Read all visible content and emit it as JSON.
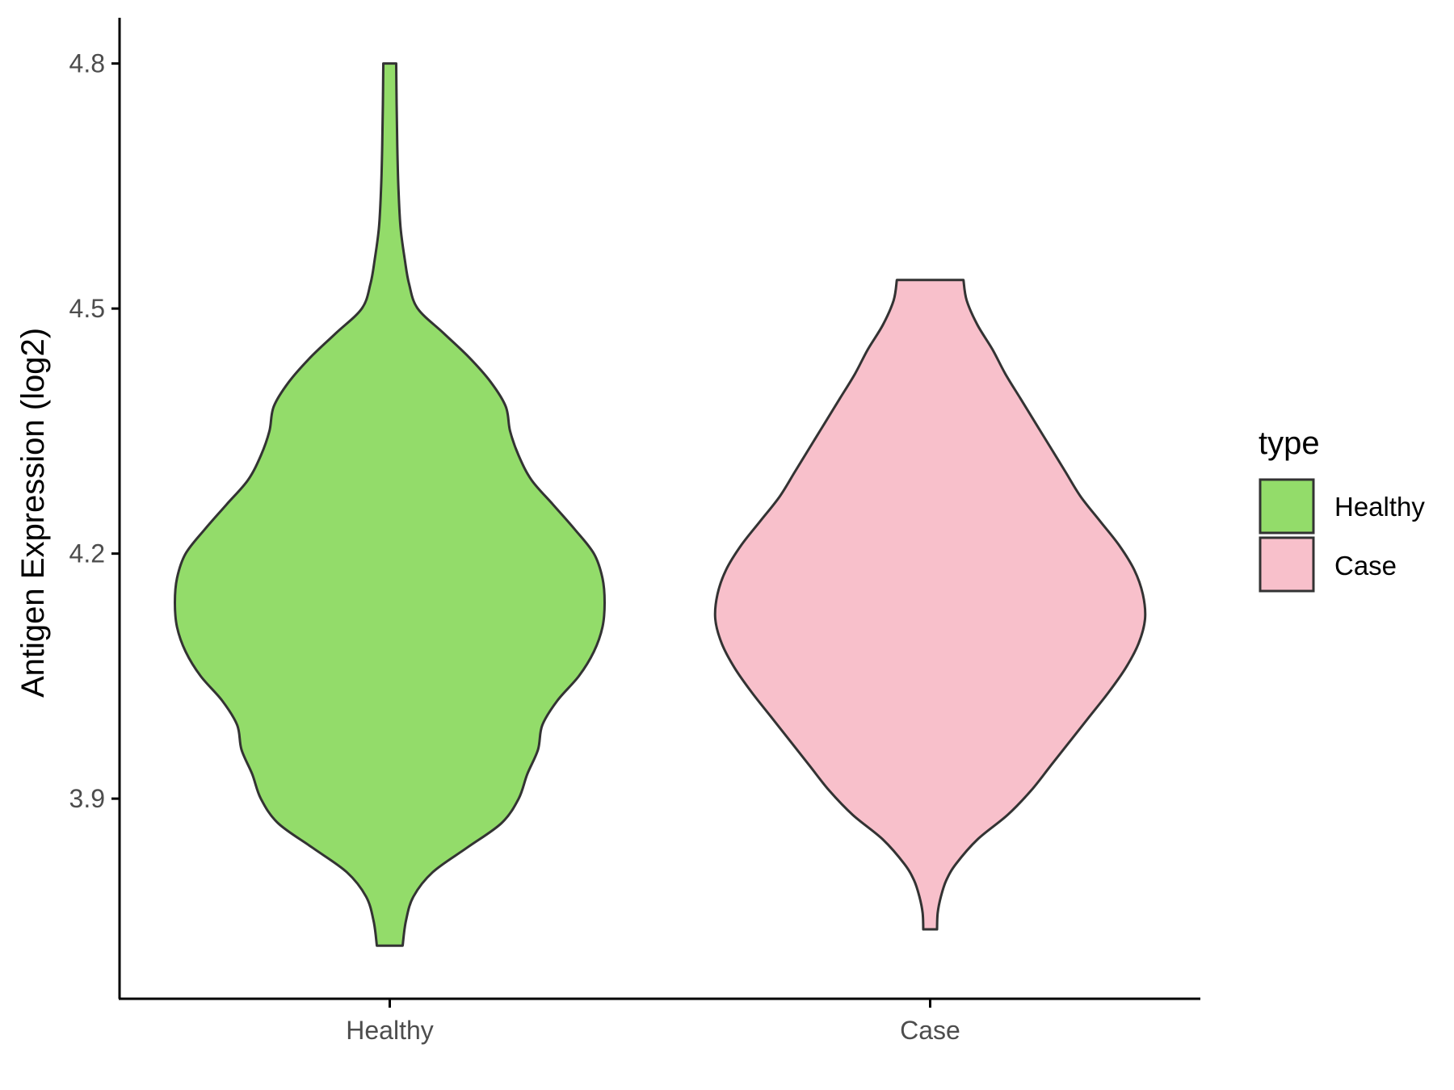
{
  "chart_data": {
    "type": "violin",
    "title": "",
    "xlabel": "",
    "ylabel": "Antigen Expression (log2)",
    "categories": [
      "Healthy",
      "Case"
    ],
    "y_ticks": [
      3.9,
      4.2,
      4.5,
      4.8
    ],
    "y_tick_labels": [
      "3.9",
      "4.2",
      "4.5",
      "4.8"
    ],
    "ylim": [
      3.655,
      4.856
    ],
    "grid": false,
    "legend": {
      "title": "type",
      "position": "right",
      "entries": [
        {
          "label": "Healthy",
          "color": "#93dc6a"
        },
        {
          "label": "Case",
          "color": "#f8c0cb"
        }
      ]
    },
    "outline_color": "#333333",
    "series": [
      {
        "name": "Healthy",
        "color": "#93dc6a",
        "min": 3.72,
        "max": 4.8,
        "profile": [
          [
            3.72,
            0.06
          ],
          [
            3.75,
            0.075
          ],
          [
            3.78,
            0.11
          ],
          [
            3.81,
            0.2
          ],
          [
            3.84,
            0.36
          ],
          [
            3.87,
            0.52
          ],
          [
            3.9,
            0.6
          ],
          [
            3.93,
            0.64
          ],
          [
            3.96,
            0.69
          ],
          [
            3.99,
            0.71
          ],
          [
            4.02,
            0.78
          ],
          [
            4.05,
            0.88
          ],
          [
            4.08,
            0.95
          ],
          [
            4.11,
            0.99
          ],
          [
            4.14,
            1.0
          ],
          [
            4.17,
            0.99
          ],
          [
            4.2,
            0.95
          ],
          [
            4.23,
            0.86
          ],
          [
            4.26,
            0.76
          ],
          [
            4.29,
            0.66
          ],
          [
            4.32,
            0.6
          ],
          [
            4.35,
            0.56
          ],
          [
            4.38,
            0.54
          ],
          [
            4.41,
            0.47
          ],
          [
            4.44,
            0.37
          ],
          [
            4.47,
            0.25
          ],
          [
            4.5,
            0.13
          ],
          [
            4.53,
            0.09
          ],
          [
            4.56,
            0.07
          ],
          [
            4.6,
            0.05
          ],
          [
            4.65,
            0.04
          ],
          [
            4.7,
            0.035
          ],
          [
            4.75,
            0.032
          ],
          [
            4.8,
            0.03
          ]
        ]
      },
      {
        "name": "Case",
        "color": "#f8c0cb",
        "min": 3.74,
        "max": 4.535,
        "profile": [
          [
            3.74,
            0.032
          ],
          [
            3.76,
            0.035
          ],
          [
            3.78,
            0.05
          ],
          [
            3.8,
            0.075
          ],
          [
            3.82,
            0.12
          ],
          [
            3.85,
            0.22
          ],
          [
            3.88,
            0.36
          ],
          [
            3.91,
            0.47
          ],
          [
            3.94,
            0.56
          ],
          [
            3.97,
            0.65
          ],
          [
            4.0,
            0.74
          ],
          [
            4.03,
            0.83
          ],
          [
            4.06,
            0.91
          ],
          [
            4.09,
            0.97
          ],
          [
            4.12,
            1.0
          ],
          [
            4.15,
            0.99
          ],
          [
            4.18,
            0.95
          ],
          [
            4.21,
            0.88
          ],
          [
            4.24,
            0.79
          ],
          [
            4.27,
            0.7
          ],
          [
            4.3,
            0.63
          ],
          [
            4.33,
            0.56
          ],
          [
            4.36,
            0.49
          ],
          [
            4.39,
            0.42
          ],
          [
            4.42,
            0.35
          ],
          [
            4.45,
            0.29
          ],
          [
            4.48,
            0.22
          ],
          [
            4.51,
            0.17
          ],
          [
            4.535,
            0.155
          ]
        ]
      }
    ]
  }
}
